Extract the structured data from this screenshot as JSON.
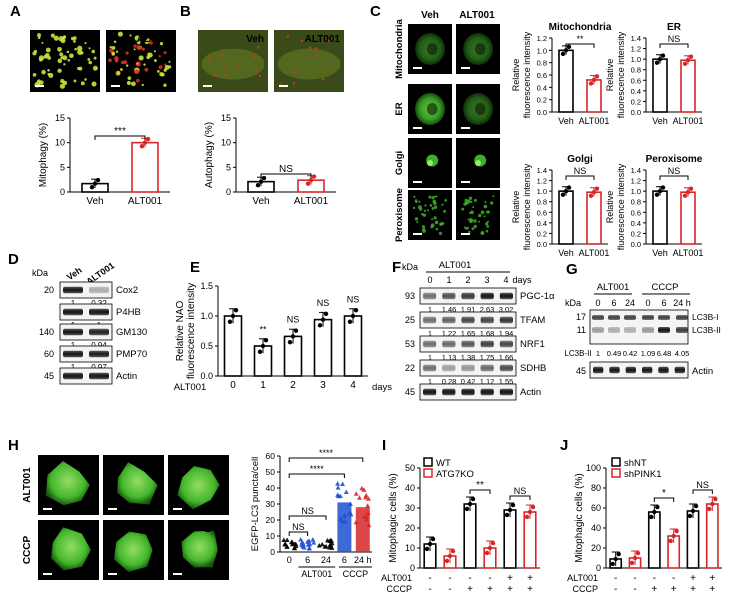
{
  "colors": {
    "black_bar": "#000000",
    "red_bar": "#d62728",
    "blue_dots": "#1f4fd1",
    "micro_green": "#3fae2a",
    "micro_yellow": "#c8e63a",
    "micro_red": "#e03020",
    "blot_dark": "#2a2a2a"
  },
  "panel_letters": [
    "A",
    "B",
    "C",
    "D",
    "E",
    "F",
    "G",
    "H",
    "I",
    "J"
  ],
  "A": {
    "image_labels": [
      "Veh",
      "ALT001"
    ],
    "chart_data": {
      "type": "bar",
      "categories": [
        "Veh",
        "ALT001"
      ],
      "values": [
        1.7,
        10
      ],
      "ylabel": "Mitophagy (%)",
      "ylim": [
        0,
        15
      ],
      "yticks": [
        "0",
        "5",
        "10",
        "15"
      ],
      "significance": "***"
    }
  },
  "B": {
    "image_labels": [
      "Veh",
      "ALT001"
    ],
    "chart_data": {
      "type": "bar",
      "categories": [
        "Veh",
        "ALT001"
      ],
      "values": [
        2.1,
        2.4
      ],
      "ylabel": "Autophagy (%)",
      "ylim": [
        0,
        15
      ],
      "yticks": [
        "0",
        "5",
        "10",
        "15"
      ],
      "significance": "NS"
    }
  },
  "C": {
    "image_columns": [
      "Veh",
      "ALT001"
    ],
    "image_rows": [
      "Mitochondria",
      "ER",
      "Golgi",
      "Peroxisome"
    ],
    "charts": [
      {
        "type": "bar",
        "title": "Mitochondria",
        "categories": [
          "Veh",
          "ALT001"
        ],
        "values": [
          1.0,
          0.52
        ],
        "ylabel1": "Relative",
        "ylabel2": "fluorescence intensity",
        "ylim": [
          0,
          1.2
        ],
        "yticks": [
          "0.0",
          "0.2",
          "0.4",
          "0.6",
          "0.8",
          "1.0",
          "1.2"
        ],
        "significance": "**"
      },
      {
        "type": "bar",
        "title": "ER",
        "categories": [
          "Veh",
          "ALT001"
        ],
        "values": [
          1.0,
          0.98
        ],
        "ylabel1": "Relative",
        "ylabel2": "fluorescence intensity",
        "ylim": [
          0,
          1.4
        ],
        "yticks": [
          "0.0",
          "0.2",
          "0.4",
          "0.6",
          "0.8",
          "1.0",
          "1.2",
          "1.4"
        ],
        "significance": "NS"
      },
      {
        "type": "bar",
        "title": "Golgi",
        "categories": [
          "Veh",
          "ALT001"
        ],
        "values": [
          1.0,
          0.98
        ],
        "ylabel1": "Relative",
        "ylabel2": "fluorescence intensity",
        "ylim": [
          0,
          1.4
        ],
        "yticks": [
          "0.0",
          "0.2",
          "0.4",
          "0.6",
          "0.8",
          "1.0",
          "1.2",
          "1.4"
        ],
        "significance": "NS"
      },
      {
        "type": "bar",
        "title": "Peroxisome",
        "categories": [
          "Veh",
          "ALT001"
        ],
        "values": [
          1.0,
          0.98
        ],
        "ylabel1": "Relative",
        "ylabel2": "fluorescence intensity",
        "ylim": [
          0,
          1.4
        ],
        "yticks": [
          "0.0",
          "0.2",
          "0.4",
          "0.6",
          "0.8",
          "1.0",
          "1.2",
          "1.4"
        ],
        "significance": "NS"
      }
    ]
  },
  "D": {
    "kda_label": "kDa",
    "columns": [
      "Veh",
      "ALT001"
    ],
    "rows": [
      {
        "kda": "20",
        "name": "Cox2",
        "values": [
          "1",
          "0.32"
        ]
      },
      {
        "kda": "",
        "name": "P4HB",
        "values": [
          "1",
          "1"
        ]
      },
      {
        "kda": "140",
        "name": "GM130",
        "values": [
          "1",
          "0.94"
        ]
      },
      {
        "kda": "60",
        "name": "PMP70",
        "values": [
          "1",
          "0.97"
        ]
      },
      {
        "kda": "45",
        "name": "Actin",
        "values": []
      }
    ]
  },
  "E": {
    "chart_data": {
      "type": "bar",
      "categories": [
        "0",
        "1",
        "2",
        "3",
        "4"
      ],
      "values": [
        1.0,
        0.5,
        0.66,
        0.94,
        1.0
      ],
      "significance": [
        "",
        "**",
        "NS",
        "NS",
        "NS"
      ],
      "ylabel1": "Relative NAO",
      "ylabel2": "fluorescence intensity",
      "ylim": [
        0,
        1.5
      ],
      "yticks": [
        "0.0",
        "0.5",
        "1.0",
        "1.5"
      ],
      "x_prefix": "ALT001",
      "x_suffix": "days"
    }
  },
  "F": {
    "header": "ALT001",
    "days": [
      "0",
      "1",
      "2",
      "3",
      "4"
    ],
    "days_unit": "days",
    "kda_label": "kDa",
    "rows": [
      {
        "kda": "93",
        "name": "PGC-1α",
        "values": [
          "1",
          "1.46",
          "1.91",
          "2.63",
          "3.02"
        ]
      },
      {
        "kda": "25",
        "name": "TFAM",
        "values": [
          "1",
          "1.22",
          "1.65",
          "1.68",
          "1.94"
        ]
      },
      {
        "kda": "53",
        "name": "NRF1",
        "values": [
          "1",
          "1.13",
          "1.38",
          "1.75",
          "1.66"
        ]
      },
      {
        "kda": "22",
        "name": "SDHB",
        "values": [
          "1",
          "0.28",
          "0.42",
          "1.12",
          "1.55"
        ]
      },
      {
        "kda": "45",
        "name": "Actin",
        "values": []
      }
    ]
  },
  "G": {
    "groups": [
      "ALT001",
      "CCCP"
    ],
    "times": [
      "0",
      "6",
      "24",
      "0",
      "6",
      "24 h"
    ],
    "kda_label": "kDa",
    "kda_top": [
      "17",
      "11"
    ],
    "band_labels": [
      "LC3B-I",
      "LC3B-II"
    ],
    "quant_label": "LC3B-II",
    "quant_values": [
      "1",
      "0.49",
      "0.42",
      "1.09",
      "6.48",
      "4.05"
    ],
    "actin": {
      "kda": "45",
      "name": "Actin"
    }
  },
  "H": {
    "image_rows": [
      "ALT001",
      "CCCP"
    ],
    "time_labels": [
      "0 h",
      "6 h",
      "24 h"
    ],
    "chart_data": {
      "type": "scatter",
      "categories": [
        "0",
        "6",
        "24",
        "6",
        "24 h"
      ],
      "values": [
        5,
        5,
        5,
        31,
        28
      ],
      "group_labels": [
        "ALT001",
        "CCCP"
      ],
      "ylabel": "EGFP-LC3 puncta/cell",
      "ylim": [
        0,
        60
      ],
      "yticks": [
        "0",
        "10",
        "20",
        "30",
        "40",
        "50",
        "60"
      ],
      "significance": [
        "****",
        "****",
        "NS",
        "NS"
      ]
    }
  },
  "I": {
    "chart_data": {
      "type": "bar",
      "series": [
        {
          "name": "WT",
          "values": [
            12,
            32,
            29
          ]
        },
        {
          "name": "ATG7KO",
          "values": [
            6,
            10,
            28
          ]
        }
      ],
      "ylabel": "Mitophagic cells (%)",
      "ylim": [
        0,
        50
      ],
      "yticks": [
        "0",
        "10",
        "20",
        "30",
        "40",
        "50"
      ],
      "conditions": {
        "ALT001": [
          "-",
          "-",
          "-",
          "-",
          "+",
          "+"
        ],
        "CCCP": [
          "-",
          "-",
          "+",
          "+",
          "+",
          "+"
        ]
      },
      "significance": [
        "**",
        "NS"
      ],
      "row_labels": [
        "ALT001",
        "CCCP"
      ]
    }
  },
  "J": {
    "chart_data": {
      "type": "bar",
      "series": [
        {
          "name": "shNT",
          "values": [
            9,
            56,
            57
          ]
        },
        {
          "name": "shPINK1",
          "values": [
            10,
            32,
            64
          ]
        }
      ],
      "ylabel": "Mitophagic cells (%)",
      "ylim": [
        0,
        100
      ],
      "yticks": [
        "0",
        "20",
        "40",
        "60",
        "80",
        "100"
      ],
      "conditions": {
        "ALT001": [
          "-",
          "-",
          "-",
          "-",
          "+",
          "+"
        ],
        "CCCP": [
          "-",
          "-",
          "+",
          "+",
          "+",
          "+"
        ]
      },
      "significance": [
        "*",
        "NS"
      ],
      "row_labels": [
        "ALT001",
        "CCCP"
      ]
    }
  }
}
